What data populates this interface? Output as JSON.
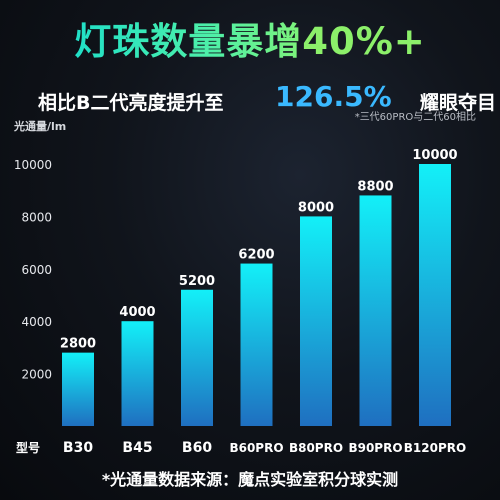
{
  "headline": {
    "main": "灯珠数量暴增",
    "accent": "40%+"
  },
  "subline": {
    "lead": "相比B二代亮度提升至",
    "value": "126.5%",
    "tail": "耀眼夺目"
  },
  "note": "*三代60PRO与二代60相比",
  "footer": "*光通量数据来源：魔点实验室积分球实测",
  "chart_data": {
    "type": "bar",
    "ylabel": "光通量/lm",
    "xlabel": "型号",
    "ylim": [
      0,
      10000
    ],
    "yticks": [
      2000,
      4000,
      6000,
      8000,
      10000
    ],
    "categories": [
      "B30",
      "B45",
      "B60",
      "B60PRO",
      "B80PRO",
      "B90PRO",
      "B120PRO"
    ],
    "values": [
      2800,
      4000,
      5200,
      6200,
      8000,
      8800,
      10000
    ],
    "colors": {
      "bar_bottom": "#1f6fc0",
      "bar_top": "#13f0f8",
      "accent": "#3ab9ff"
    }
  }
}
